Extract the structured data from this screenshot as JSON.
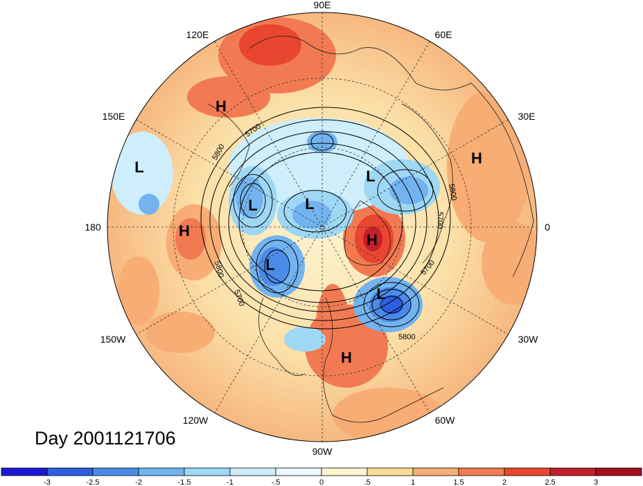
{
  "title": "Day 2001121706",
  "longitude_labels": [
    {
      "text": "90E"
    },
    {
      "text": "60E"
    },
    {
      "text": "30E"
    },
    {
      "text": "0"
    },
    {
      "text": "30W"
    },
    {
      "text": "60W"
    },
    {
      "text": "90W"
    },
    {
      "text": "120W"
    },
    {
      "text": "150W"
    },
    {
      "text": "180"
    },
    {
      "text": "150E"
    },
    {
      "text": "120E"
    }
  ],
  "pressure_centers": [
    {
      "type": "H",
      "label": "H"
    },
    {
      "type": "H",
      "label": "H"
    },
    {
      "type": "H",
      "label": "H"
    },
    {
      "type": "H",
      "label": "H"
    },
    {
      "type": "H",
      "label": "H"
    },
    {
      "type": "L",
      "label": "L"
    },
    {
      "type": "L",
      "label": "L"
    },
    {
      "type": "L",
      "label": "L"
    },
    {
      "type": "L",
      "label": "L"
    },
    {
      "type": "L",
      "label": "L"
    },
    {
      "type": "L",
      "label": "L"
    }
  ],
  "contour_labels": [
    "5700",
    "5800",
    "5800",
    "5700",
    "5700",
    "5800",
    "5800",
    "5700"
  ],
  "colorbar": {
    "labels": [
      "-3",
      "-2.5",
      "-2",
      "-1.5",
      "-1",
      "-.5",
      "0",
      ".5",
      "1",
      "1.5",
      "2",
      "2.5",
      "3"
    ],
    "colors": [
      "#1a1ad6",
      "#2b5fe0",
      "#4a8be8",
      "#72b3f0",
      "#9fd8f5",
      "#cdeefa",
      "#ecf8fc",
      "#fdf5d0",
      "#fadb9a",
      "#f7ad74",
      "#f27a52",
      "#e84630",
      "#c3202a",
      "#a50f1e"
    ]
  }
}
